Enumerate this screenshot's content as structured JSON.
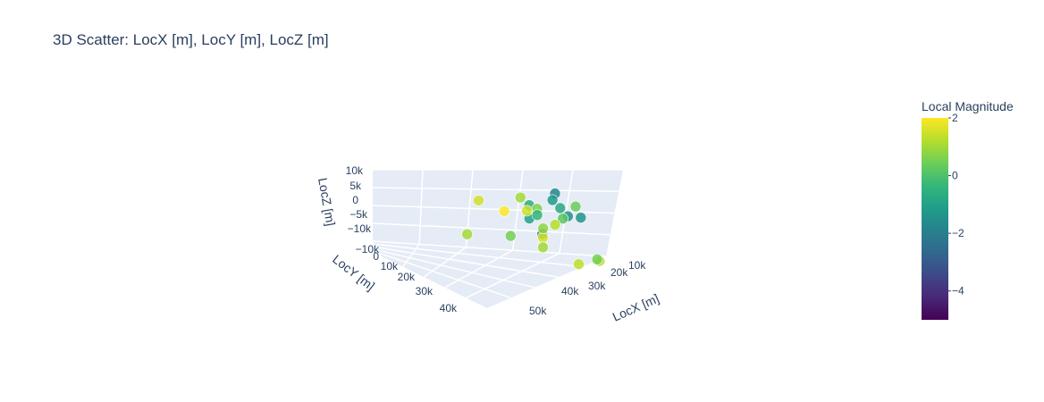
{
  "chart_data": {
    "type": "scatter3d",
    "title": "3D Scatter: LocX [m], LocY [m], LocZ [m]",
    "x_axis": {
      "label": "LocX [m]",
      "ticks": [
        "10k",
        "20k",
        "30k",
        "40k",
        "50k"
      ],
      "range": [
        10000,
        55000
      ]
    },
    "y_axis": {
      "label": "LocY [m]",
      "ticks": [
        "0",
        "10k",
        "20k",
        "30k",
        "40k"
      ],
      "range": [
        0,
        45000
      ]
    },
    "z_axis": {
      "label": "LocZ [m]",
      "ticks": [
        "10k",
        "5k",
        "0",
        "−5k",
        "−10k"
      ],
      "range": [
        -10000,
        10000
      ]
    },
    "colorbar": {
      "title": "Local Magnitude",
      "ticks": [
        "2",
        "0",
        "−2",
        "−4"
      ],
      "range": [
        -5,
        2
      ],
      "colorscale": [
        "#440154",
        "#482878",
        "#3e4989",
        "#31688e",
        "#26828e",
        "#1f9e89",
        "#35b779",
        "#6ece58",
        "#b5de2b",
        "#fde725"
      ]
    },
    "points": [
      {
        "x": 28000,
        "y": 5000,
        "z": 4000,
        "m": 1.5
      },
      {
        "x": 31000,
        "y": 9000,
        "z": 2000,
        "m": 2.0
      },
      {
        "x": 27000,
        "y": 2500,
        "z": -6000,
        "m": 1.0
      },
      {
        "x": 36000,
        "y": 14000,
        "z": -4000,
        "m": 1.6
      },
      {
        "x": 37000,
        "y": 12000,
        "z": -7000,
        "m": 1.0
      },
      {
        "x": 40000,
        "y": 20000,
        "z": -10000,
        "m": 1.3
      },
      {
        "x": 20000,
        "y": 38000,
        "z": 10000,
        "m": 1.0
      },
      {
        "x": 22000,
        "y": 30000,
        "z": -2000,
        "m": 0.5
      },
      {
        "x": 45000,
        "y": 18000,
        "z": -9000,
        "m": 1.2
      },
      {
        "x": 46000,
        "y": 15000,
        "z": -9000,
        "m": 0.5
      },
      {
        "x": 38000,
        "y": 10000,
        "z": -2000,
        "m": 0.8
      },
      {
        "x": 32000,
        "y": 20000,
        "z": 3000,
        "m": -0.4
      },
      {
        "x": 31000,
        "y": 22000,
        "z": 5000,
        "m": 0.6
      },
      {
        "x": 30000,
        "y": 21000,
        "z": 2000,
        "m": -1.0
      },
      {
        "x": 29000,
        "y": 23000,
        "z": 6000,
        "m": -0.6
      },
      {
        "x": 33000,
        "y": 24000,
        "z": 8000,
        "m": -1.2
      },
      {
        "x": 34000,
        "y": 25000,
        "z": 6000,
        "m": -0.8
      },
      {
        "x": 35000,
        "y": 26000,
        "z": 4000,
        "m": -1.5
      },
      {
        "x": 36000,
        "y": 27000,
        "z": 7000,
        "m": 0.4
      },
      {
        "x": 33000,
        "y": 25000,
        "z": 10000,
        "m": -1.8
      },
      {
        "x": 35000,
        "y": 24000,
        "z": 3000,
        "m": 0.2
      },
      {
        "x": 32000,
        "y": 22000,
        "z": -2000,
        "m": -2.2
      },
      {
        "x": 34000,
        "y": 23000,
        "z": 1000,
        "m": 1.2
      },
      {
        "x": 37000,
        "y": 27000,
        "z": 4000,
        "m": -1.4
      },
      {
        "x": 30000,
        "y": 20000,
        "z": 4000,
        "m": 1.5
      }
    ]
  }
}
